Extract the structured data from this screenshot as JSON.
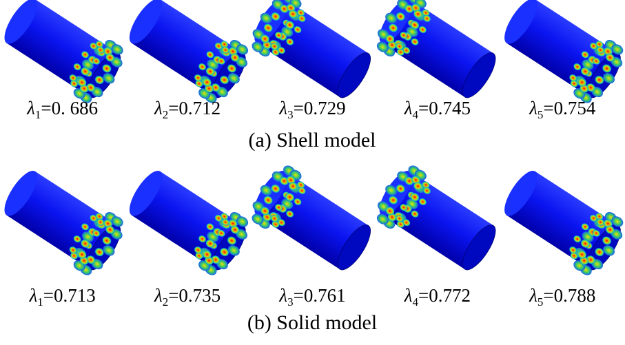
{
  "panels": [
    {
      "caption": "(a) Shell model",
      "modes": [
        {
          "symbol": "λ",
          "index": "1",
          "value": "=0. 686"
        },
        {
          "symbol": "λ",
          "index": "2",
          "value": "=0.712"
        },
        {
          "symbol": "λ",
          "index": "3",
          "value": "=0.729"
        },
        {
          "symbol": "λ",
          "index": "4",
          "value": "=0.745"
        },
        {
          "symbol": "λ",
          "index": "5",
          "value": "=0.754"
        }
      ]
    },
    {
      "caption": "(b) Solid model",
      "modes": [
        {
          "symbol": "λ",
          "index": "1",
          "value": "=0.713"
        },
        {
          "symbol": "λ",
          "index": "2",
          "value": "=0.735"
        },
        {
          "symbol": "λ",
          "index": "3",
          "value": "=0.761"
        },
        {
          "symbol": "λ",
          "index": "4",
          "value": "=0.772"
        },
        {
          "symbol": "λ",
          "index": "5",
          "value": "=0.788"
        }
      ]
    }
  ]
}
